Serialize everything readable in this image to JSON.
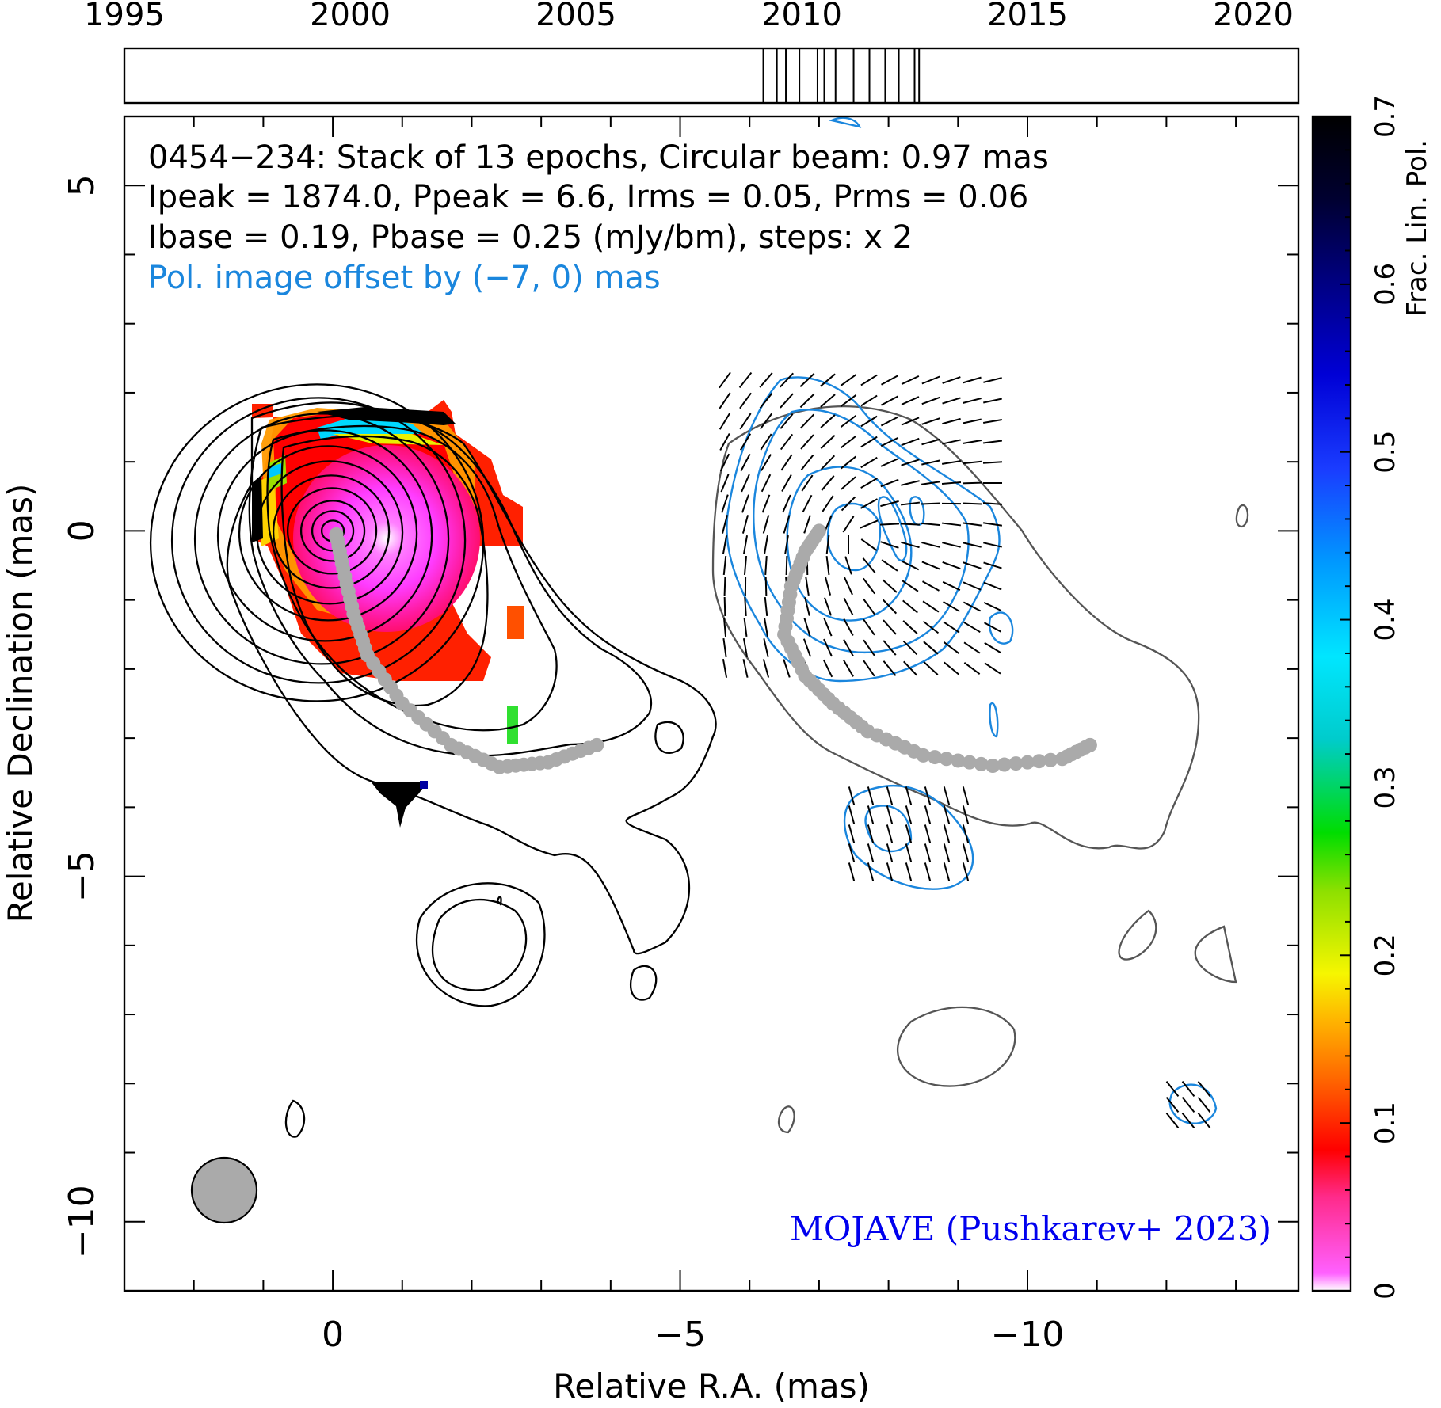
{
  "chart_data": {
    "type": "contour",
    "source": "0454−234",
    "header_lines": [
      "0454−234: Stack of 13 epochs, Circular beam: 0.97 mas",
      "Ipeak = 1874.0, Ppeak = 6.6, Irms = 0.05, Prms = 0.06",
      "Ibase = 0.19, Pbase = 0.25 (mJy/bm), steps: x 2"
    ],
    "offset_note": "Pol. image offset by (−7, 0) mas",
    "signature": "MOJAVE (Pushkarev+ 2023)",
    "xlabel": "Relative R.A. (mas)",
    "ylabel": "Relative Declination (mas)",
    "xlim": [
      3,
      -13.9
    ],
    "ylim": [
      -11,
      6
    ],
    "x_ticks": [
      {
        "v": 0,
        "label": "0"
      },
      {
        "v": -5,
        "label": "−5"
      },
      {
        "v": -10,
        "label": "−10"
      }
    ],
    "y_ticks": [
      {
        "v": 5,
        "label": "5"
      },
      {
        "v": 0,
        "label": "0"
      },
      {
        "v": -5,
        "label": "−5"
      },
      {
        "v": -10,
        "label": "−10"
      }
    ],
    "beam_mas": 0.97,
    "colorbar": {
      "label": "Frac. Lin. Pol.",
      "range": [
        0,
        0.7
      ],
      "ticks": [
        {
          "v": 0,
          "label": "0"
        },
        {
          "v": 0.1,
          "label": "0.1"
        },
        {
          "v": 0.2,
          "label": "0.2"
        },
        {
          "v": 0.3,
          "label": "0.3"
        },
        {
          "v": 0.4,
          "label": "0.4"
        },
        {
          "v": 0.5,
          "label": "0.5"
        },
        {
          "v": 0.6,
          "label": "0.6"
        },
        {
          "v": 0.7,
          "label": "0.7"
        }
      ]
    },
    "timeline": {
      "range": [
        1995,
        2021
      ],
      "ticks": [
        {
          "v": 1995,
          "label": "1995"
        },
        {
          "v": 2000,
          "label": "2000"
        },
        {
          "v": 2005,
          "label": "2005"
        },
        {
          "v": 2010,
          "label": "2010"
        },
        {
          "v": 2015,
          "label": "2015"
        },
        {
          "v": 2020,
          "label": "2020"
        }
      ],
      "epochs": [
        2009.15,
        2009.45,
        2009.65,
        2009.95,
        2010.35,
        2010.5,
        2010.75,
        2011.15,
        2011.5,
        2011.85,
        2012.15,
        2012.5,
        2012.6
      ]
    },
    "ridge_line": [
      [
        -0.05,
        -0.05
      ],
      [
        -0.15,
        -0.55
      ],
      [
        -0.3,
        -1.2
      ],
      [
        -0.5,
        -1.8
      ],
      [
        -1.0,
        -2.5
      ],
      [
        -1.7,
        -3.1
      ],
      [
        -2.4,
        -3.42
      ],
      [
        -3.1,
        -3.35
      ],
      [
        -3.8,
        -3.1
      ]
    ],
    "ridge_line_pol": [
      [
        -7.0,
        -0.0
      ],
      [
        -6.8,
        -0.3
      ],
      [
        -6.6,
        -0.8
      ],
      [
        -6.5,
        -1.5
      ],
      [
        -6.8,
        -2.1
      ],
      [
        -7.2,
        -2.5
      ],
      [
        -7.7,
        -2.9
      ],
      [
        -8.5,
        -3.25
      ],
      [
        -9.5,
        -3.4
      ],
      [
        -10.5,
        -3.3
      ],
      [
        -10.9,
        -3.1
      ]
    ],
    "colors": {
      "stokes_i": "#000000",
      "pol_contour": "#1a86dd",
      "offset_text": "#1a86dd",
      "signature": "#0000ee",
      "ridge": "#aaaaaa",
      "beam": "#aaaaaa"
    }
  }
}
